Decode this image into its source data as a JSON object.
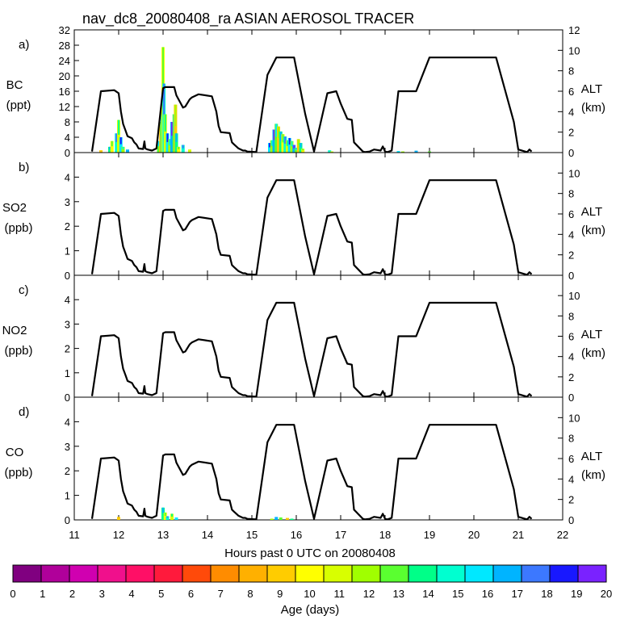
{
  "chart_data": {
    "title": "nav_dc8_20080408_ra ASIAN AEROSOL TRACER",
    "xlabel": "Hours past 0 UTC on 20080408",
    "x_ticks": [
      "11",
      "12",
      "13",
      "14",
      "15",
      "16",
      "17",
      "18",
      "19",
      "20",
      "21",
      "22"
    ],
    "xlim": [
      11,
      22
    ],
    "altitude_track_km": {
      "x": [
        11.4,
        11.6,
        11.9,
        12.0,
        12.05,
        12.1,
        12.15,
        12.2,
        12.3,
        12.35,
        12.4,
        12.45,
        12.55,
        12.58,
        12.6,
        12.65,
        12.75,
        12.85,
        13.0,
        13.05,
        13.25,
        13.3,
        13.45,
        13.5,
        13.6,
        13.65,
        13.8,
        14.1,
        14.2,
        14.25,
        14.3,
        14.5,
        14.55,
        14.6,
        14.7,
        14.8,
        14.85,
        14.9,
        15.1,
        15.35,
        15.55,
        15.95,
        16.2,
        16.4,
        16.5,
        16.7,
        16.9,
        17.0,
        17.15,
        17.25,
        17.3,
        17.5,
        17.55,
        17.65,
        17.75,
        17.9,
        17.95,
        18.0,
        18.05,
        18.15,
        18.3,
        18.6,
        18.7,
        19.0,
        19.05,
        20.5,
        20.9,
        21.0,
        21.2,
        21.25,
        21.3
      ],
      "y": [
        0.1,
        6.0,
        6.1,
        5.8,
        4.0,
        2.8,
        2.2,
        1.6,
        1.4,
        1.0,
        0.8,
        0.4,
        0.35,
        1.1,
        0.4,
        0.3,
        0.2,
        0.4,
        6.3,
        6.4,
        6.4,
        5.6,
        4.4,
        4.5,
        5.2,
        5.4,
        5.7,
        5.5,
        4.0,
        2.6,
        2.0,
        1.9,
        1.0,
        0.8,
        0.4,
        0.2,
        0.2,
        0.1,
        0.05,
        7.6,
        9.3,
        9.3,
        3.8,
        0.1,
        2.0,
        5.8,
        6.0,
        4.8,
        3.3,
        3.2,
        1.0,
        0.1,
        0.05,
        0.1,
        0.3,
        0.2,
        0.6,
        0.1,
        0.05,
        0.2,
        6.0,
        6.0,
        6.0,
        9.3,
        9.3,
        9.3,
        3.0,
        0.3,
        0.05,
        0.3,
        0.1
      ]
    },
    "panels": [
      {
        "letter": "a)",
        "species": "BC",
        "unit": "(ppt)",
        "left_ticks": [
          "0",
          "4",
          "8",
          "12",
          "16",
          "20",
          "24",
          "28",
          "32"
        ],
        "ylim": [
          0,
          32
        ],
        "right_ticks": [
          "0",
          "2",
          "4",
          "6",
          "8",
          "10",
          "12"
        ],
        "alt_ylim_km": [
          0,
          12
        ],
        "alt_label": "ALT",
        "alt_unit": "(km)",
        "tracer_points": [
          [
            11.6,
            0.6
          ],
          [
            11.8,
            1.5
          ],
          [
            11.85,
            3
          ],
          [
            11.95,
            5
          ],
          [
            12.0,
            8.5
          ],
          [
            12.05,
            4
          ],
          [
            12.1,
            1.5
          ],
          [
            12.2,
            0.8
          ],
          [
            12.9,
            3
          ],
          [
            12.95,
            8
          ],
          [
            12.98,
            12
          ],
          [
            13.0,
            27.5
          ],
          [
            13.02,
            18
          ],
          [
            13.05,
            10
          ],
          [
            13.1,
            5
          ],
          [
            13.15,
            3.5
          ],
          [
            13.2,
            8
          ],
          [
            13.25,
            10
          ],
          [
            13.28,
            12.5
          ],
          [
            13.3,
            5
          ],
          [
            13.35,
            1.5
          ],
          [
            13.45,
            2
          ],
          [
            13.6,
            0.8
          ],
          [
            15.4,
            2.5
          ],
          [
            15.45,
            3.2
          ],
          [
            15.5,
            6
          ],
          [
            15.55,
            7.5
          ],
          [
            15.6,
            6.8
          ],
          [
            15.65,
            5.5
          ],
          [
            15.7,
            4.8
          ],
          [
            15.75,
            4.2
          ],
          [
            15.8,
            3.2
          ],
          [
            15.85,
            3.8
          ],
          [
            15.9,
            3
          ],
          [
            15.95,
            2
          ],
          [
            16.0,
            1.2
          ],
          [
            16.05,
            3.5
          ],
          [
            16.1,
            2.5
          ],
          [
            16.15,
            1
          ],
          [
            16.75,
            0.6
          ],
          [
            16.8,
            0.3
          ],
          [
            18.3,
            0.4
          ],
          [
            18.4,
            0.3
          ],
          [
            18.7,
            0.5
          ],
          [
            19.0,
            0.3
          ]
        ]
      },
      {
        "letter": "b)",
        "species": "SO2",
        "unit": "(ppb)",
        "left_ticks": [
          "0",
          "1",
          "2",
          "3",
          "4"
        ],
        "ylim": [
          0,
          5
        ],
        "right_ticks": [
          "0",
          "2",
          "4",
          "6",
          "8",
          "10"
        ],
        "alt_ylim_km": [
          0,
          12
        ],
        "alt_label": "ALT",
        "alt_unit": "(km)",
        "tracer_points": []
      },
      {
        "letter": "c)",
        "species": "NO2",
        "unit": "(ppb)",
        "left_ticks": [
          "0",
          "1",
          "2",
          "3",
          "4"
        ],
        "ylim": [
          0,
          5
        ],
        "right_ticks": [
          "0",
          "2",
          "4",
          "6",
          "8",
          "10"
        ],
        "alt_ylim_km": [
          0,
          12
        ],
        "alt_label": "ALT",
        "alt_unit": "(km)",
        "tracer_points": []
      },
      {
        "letter": "d)",
        "species": "CO",
        "unit": "(ppb)",
        "left_ticks": [
          "0",
          "1",
          "2",
          "3",
          "4"
        ],
        "ylim": [
          0,
          5
        ],
        "right_ticks": [
          "0",
          "2",
          "4",
          "6",
          "8",
          "10"
        ],
        "alt_ylim_km": [
          0,
          12
        ],
        "alt_label": "ALT",
        "alt_unit": "(km)",
        "tracer_points": [
          [
            12.0,
            0.12
          ],
          [
            13.0,
            0.5
          ],
          [
            13.05,
            0.3
          ],
          [
            13.1,
            0.15
          ],
          [
            13.2,
            0.25
          ],
          [
            13.3,
            0.1
          ],
          [
            15.45,
            0.05
          ],
          [
            15.55,
            0.12
          ],
          [
            15.65,
            0.1
          ],
          [
            15.8,
            0.08
          ],
          [
            15.9,
            0.05
          ]
        ]
      }
    ],
    "colorbar": {
      "label": "Age (days)",
      "tick_labels": [
        "0",
        "1",
        "2",
        "3",
        "4",
        "5",
        "6",
        "7",
        "8",
        "9",
        "10",
        "11",
        "12",
        "13",
        "14",
        "15",
        "16",
        "17",
        "18",
        "19",
        "20"
      ],
      "colors": [
        "#800080",
        "#b0009a",
        "#d000b0",
        "#f0108c",
        "#ff0f66",
        "#ff1a3c",
        "#ff4a0a",
        "#ff8c00",
        "#ffb000",
        "#ffcc00",
        "#ffff00",
        "#d8ff00",
        "#a0ff00",
        "#5aff30",
        "#00ff88",
        "#00ffd0",
        "#00e8ff",
        "#00b4ff",
        "#3c78ff",
        "#1818ff",
        "#7a22ff"
      ]
    }
  }
}
